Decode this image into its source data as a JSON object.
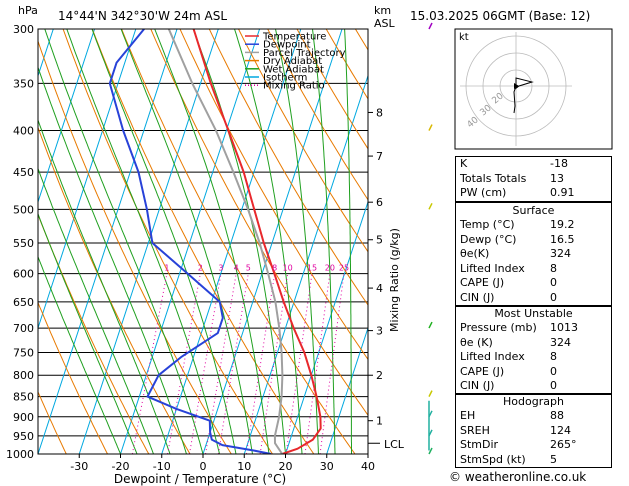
{
  "header": {
    "pressure_unit": "hPa",
    "location": "14°44'N  342°30'W  24m  ASL",
    "height_unit": "km",
    "height_unit_sub": "ASL",
    "datetime": "15.03.2025  06GMT  (Base: 12)"
  },
  "axes": {
    "xlabel": "Dewpoint / Temperature (°C)",
    "ylabel_right": "Mixing Ratio (g/kg)",
    "lcl_label": "LCL"
  },
  "legend": [
    {
      "label": "Temperature",
      "color": "#e8282c",
      "style": "solid"
    },
    {
      "label": "Dewpoint",
      "color": "#2842d8",
      "style": "solid"
    },
    {
      "label": "Parcel Trajectory",
      "color": "#a0a0a0",
      "style": "solid"
    },
    {
      "label": "Dry Adiabat",
      "color": "#e87a00",
      "style": "solid"
    },
    {
      "label": "Wet Adiabat",
      "color": "#20a020",
      "style": "solid"
    },
    {
      "label": "Isotherm",
      "color": "#00a8e0",
      "style": "solid"
    },
    {
      "label": "Mixing Ratio",
      "color": "#e000a0",
      "style": "dotted"
    }
  ],
  "chart_data": {
    "type": "line",
    "title": "",
    "xlabel": "Dewpoint / Temperature (°C)",
    "ylabel": "hPa",
    "xlim": [
      -40,
      40
    ],
    "ylim_pressure": [
      1000,
      300
    ],
    "skew_deg_per_log": 28.0,
    "x_ticks": [
      -30,
      -20,
      -10,
      0,
      10,
      20,
      30,
      40
    ],
    "pressure_levels": [
      300,
      350,
      400,
      450,
      500,
      550,
      600,
      650,
      700,
      750,
      800,
      850,
      900,
      950,
      1000
    ],
    "height_ticks_km": [
      {
        "label": "1",
        "p": 910
      },
      {
        "label": "2",
        "p": 800
      },
      {
        "label": "3",
        "p": 705
      },
      {
        "label": "4",
        "p": 625
      },
      {
        "label": "5",
        "p": 545
      },
      {
        "label": "6",
        "p": 490
      },
      {
        "label": "7",
        "p": 430
      },
      {
        "label": "8",
        "p": 380
      }
    ],
    "lcl_pressure": 970,
    "mixing_ratio_labels": [
      1,
      2,
      3,
      4,
      5,
      8,
      10,
      15,
      20,
      25
    ],
    "series": [
      {
        "name": "Temperature",
        "color": "#e8282c",
        "points": [
          [
            1000,
            19.2
          ],
          [
            985,
            22.5
          ],
          [
            960,
            25.5
          ],
          [
            930,
            26.5
          ],
          [
            900,
            25.5
          ],
          [
            850,
            23.0
          ],
          [
            800,
            20.0
          ],
          [
            750,
            16.5
          ],
          [
            700,
            12.0
          ],
          [
            650,
            7.5
          ],
          [
            600,
            3.0
          ],
          [
            550,
            -2.0
          ],
          [
            500,
            -7.0
          ],
          [
            450,
            -12.5
          ],
          [
            400,
            -19.5
          ],
          [
            350,
            -27.5
          ],
          [
            300,
            -36.0
          ]
        ]
      },
      {
        "name": "Dewpoint",
        "color": "#2842d8",
        "points": [
          [
            1000,
            16.5
          ],
          [
            990,
            12.0
          ],
          [
            975,
            4.0
          ],
          [
            960,
            1.0
          ],
          [
            940,
            0.0
          ],
          [
            910,
            -1.0
          ],
          [
            880,
            -10.0
          ],
          [
            850,
            -18.0
          ],
          [
            800,
            -17.0
          ],
          [
            760,
            -13.0
          ],
          [
            710,
            -6.0
          ],
          [
            680,
            -6.0
          ],
          [
            650,
            -8.0
          ],
          [
            600,
            -18.0
          ],
          [
            550,
            -29.0
          ],
          [
            500,
            -33.0
          ],
          [
            450,
            -38.0
          ],
          [
            400,
            -45.0
          ],
          [
            350,
            -52.0
          ],
          [
            330,
            -52.0
          ],
          [
            300,
            -48.0
          ]
        ]
      },
      {
        "name": "Parcel Trajectory",
        "color": "#a0a0a0",
        "points": [
          [
            1000,
            19.2
          ],
          [
            970,
            16.6
          ],
          [
            950,
            16.0
          ],
          [
            900,
            15.5
          ],
          [
            850,
            14.5
          ],
          [
            800,
            13.0
          ],
          [
            750,
            11.0
          ],
          [
            700,
            8.5
          ],
          [
            650,
            5.5
          ],
          [
            600,
            1.5
          ],
          [
            550,
            -3.0
          ],
          [
            500,
            -8.5
          ],
          [
            450,
            -15.0
          ],
          [
            400,
            -22.5
          ],
          [
            350,
            -32.0
          ],
          [
            300,
            -42.0
          ]
        ]
      }
    ]
  },
  "hodograph": {
    "label": "kt",
    "ring_labels": [
      "40",
      "30",
      "20"
    ]
  },
  "indices_table": [
    {
      "label": "K",
      "value": "-18"
    },
    {
      "label": "Totals Totals",
      "value": "13"
    },
    {
      "label": "PW (cm)",
      "value": "0.91"
    }
  ],
  "surface": {
    "title": "Surface",
    "rows": [
      {
        "label": "Temp (°C)",
        "value": "19.2"
      },
      {
        "label": "Dewp (°C)",
        "value": "16.5"
      },
      {
        "label": "θe(K)",
        "value": "324"
      },
      {
        "label": "Lifted Index",
        "value": "8"
      },
      {
        "label": "CAPE (J)",
        "value": "0"
      },
      {
        "label": "CIN (J)",
        "value": "0"
      }
    ]
  },
  "most_unstable": {
    "title": "Most Unstable",
    "rows": [
      {
        "label": "Pressure (mb)",
        "value": "1013"
      },
      {
        "label": "θe (K)",
        "value": "324"
      },
      {
        "label": "Lifted Index",
        "value": "8"
      },
      {
        "label": "CAPE (J)",
        "value": "0"
      },
      {
        "label": "CIN (J)",
        "value": "0"
      }
    ]
  },
  "hodograph_table": {
    "title": "Hodograph",
    "rows": [
      {
        "label": "EH",
        "value": "88"
      },
      {
        "label": "SREH",
        "value": "124"
      },
      {
        "label": "StmDir",
        "value": "265°"
      },
      {
        "label": "StmSpd (kt)",
        "value": "5"
      }
    ]
  },
  "footer": {
    "credit": "© weatheronline.co.uk"
  }
}
